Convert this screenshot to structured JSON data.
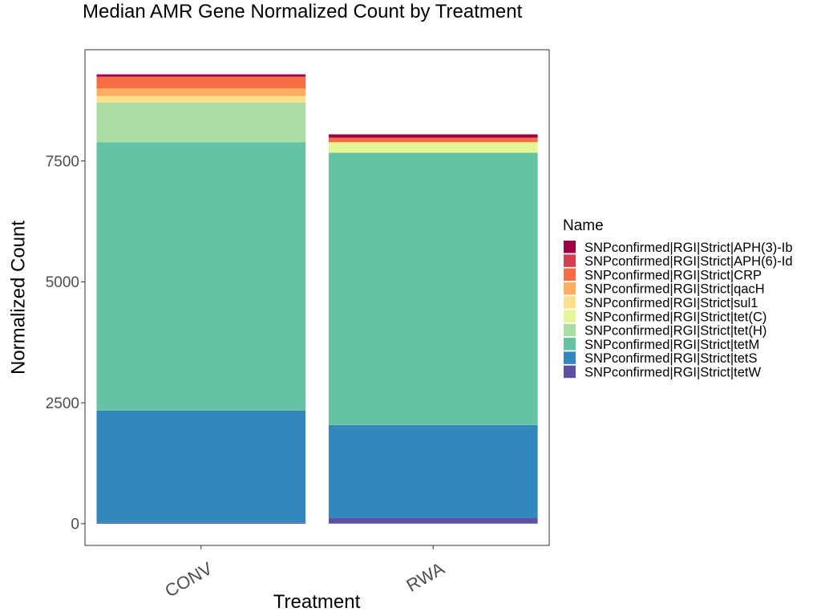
{
  "chart_data": {
    "type": "bar",
    "stacked": true,
    "title": "Median AMR Gene Normalized Count by Treatment",
    "xlabel": "Treatment",
    "ylabel": "Normalized Count",
    "categories": [
      "CONV",
      "RWA"
    ],
    "ylim": [
      -450,
      9800
    ],
    "yticks": [
      0,
      2500,
      5000,
      7500
    ],
    "ytick_labels": [
      "0",
      "2500",
      "5000",
      "7500"
    ],
    "legend_title": "Name",
    "legend_position": "right",
    "grid": false,
    "series": [
      {
        "name": "SNPconfirmed|RGI|Strict|tetW",
        "color": "#5e4fa2",
        "values": [
          20,
          120
        ]
      },
      {
        "name": "SNPconfirmed|RGI|Strict|tetS",
        "color": "#3288bd",
        "values": [
          2320,
          1920
        ]
      },
      {
        "name": "SNPconfirmed|RGI|Strict|tetM",
        "color": "#66c2a5",
        "values": [
          5550,
          5630
        ]
      },
      {
        "name": "SNPconfirmed|RGI|Strict|tet(H)",
        "color": "#abdda4",
        "values": [
          820,
          0
        ]
      },
      {
        "name": "SNPconfirmed|RGI|Strict|tet(C)",
        "color": "#e6f598",
        "values": [
          0,
          190
        ]
      },
      {
        "name": "SNPconfirmed|RGI|Strict|sul1",
        "color": "#fee08b",
        "values": [
          130,
          30
        ]
      },
      {
        "name": "SNPconfirmed|RGI|Strict|qacH",
        "color": "#fdae61",
        "values": [
          160,
          0
        ]
      },
      {
        "name": "SNPconfirmed|RGI|Strict|CRP",
        "color": "#f46d43",
        "values": [
          240,
          90
        ]
      },
      {
        "name": "SNPconfirmed|RGI|Strict|APH(6)-Id",
        "color": "#d53e4f",
        "values": [
          0,
          0
        ]
      },
      {
        "name": "SNPconfirmed|RGI|Strict|APH(3)-Ib",
        "color": "#9e0142",
        "values": [
          50,
          70
        ]
      }
    ]
  }
}
